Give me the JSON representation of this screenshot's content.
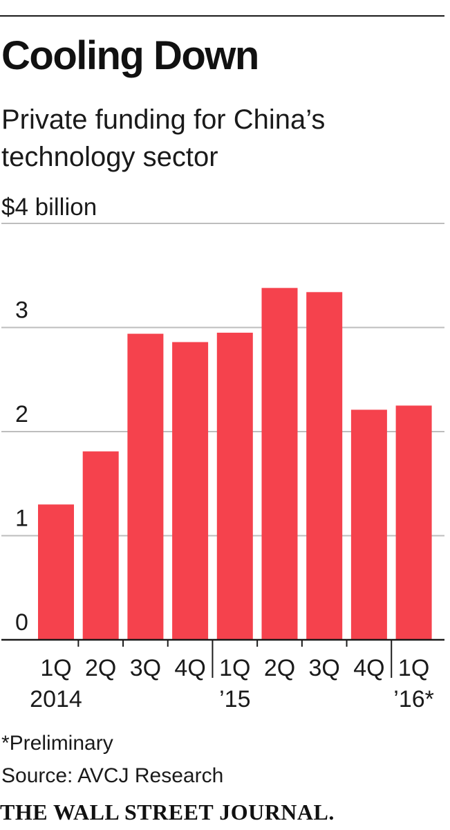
{
  "header": {
    "title": "Cooling Down",
    "subtitle": "Private funding for China’s technology sector",
    "unit_label": "$4 billion"
  },
  "footer": {
    "footnote": "*Preliminary",
    "source": "Source: AVCJ Research",
    "publisher": "THE WALL STREET JOURNAL."
  },
  "colors": {
    "bar": "#f5424d",
    "grid": "#bdbdbd",
    "axis": "#1a1a1a",
    "text": "#1a1a1a"
  },
  "chart_data": {
    "type": "bar",
    "title": "Cooling Down",
    "subtitle": "Private funding for China’s technology sector",
    "ylabel": "$4 billion",
    "ylim": [
      0,
      4
    ],
    "yticks": [
      0,
      1,
      2,
      3
    ],
    "grid": true,
    "categories": [
      "1Q 2014",
      "2Q 2014",
      "3Q 2014",
      "4Q 2014",
      "1Q ’15",
      "2Q ’15",
      "3Q ’15",
      "4Q ’15",
      "1Q ’16*"
    ],
    "x_tick_labels": [
      [
        "1Q",
        "2014"
      ],
      [
        "2Q",
        ""
      ],
      [
        "3Q",
        ""
      ],
      [
        "4Q",
        ""
      ],
      [
        "1Q",
        "’15"
      ],
      [
        "2Q",
        ""
      ],
      [
        "3Q",
        ""
      ],
      [
        "4Q",
        ""
      ],
      [
        "1Q",
        "’16*"
      ]
    ],
    "values": [
      1.3,
      1.81,
      2.94,
      2.86,
      2.95,
      3.38,
      3.34,
      2.21,
      2.25
    ]
  }
}
